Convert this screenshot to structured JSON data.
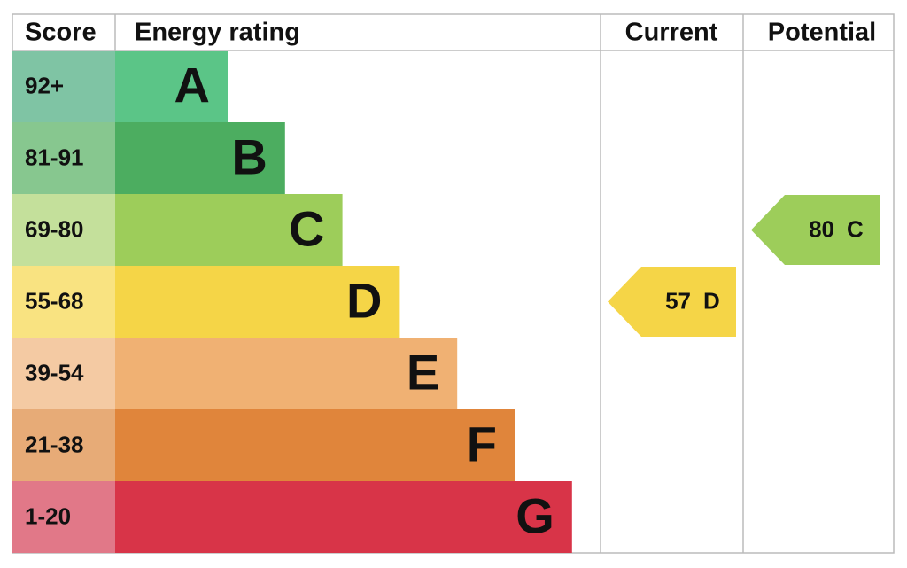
{
  "header": {
    "score": "Score",
    "rating": "Energy rating",
    "current": "Current",
    "potential": "Potential"
  },
  "bands": [
    {
      "score": "92+",
      "letter": "A",
      "color": "#5bc587",
      "score_color": "#7fc4a4"
    },
    {
      "score": "81-91",
      "letter": "B",
      "color": "#4cad60",
      "score_color": "#87c78f"
    },
    {
      "score": "69-80",
      "letter": "C",
      "color": "#9dcd5a",
      "score_color": "#c4e09b"
    },
    {
      "score": "55-68",
      "letter": "D",
      "color": "#f5d547",
      "score_color": "#f9e381"
    },
    {
      "score": "39-54",
      "letter": "E",
      "color": "#f0b173",
      "score_color": "#f4caa3"
    },
    {
      "score": "21-38",
      "letter": "F",
      "color": "#e0853b",
      "score_color": "#e7ab77"
    },
    {
      "score": "1-20",
      "letter": "G",
      "color": "#d83448",
      "score_color": "#e17888"
    }
  ],
  "current": {
    "value": "57",
    "rating": "D"
  },
  "potential": {
    "value": "80",
    "rating": "C"
  }
}
